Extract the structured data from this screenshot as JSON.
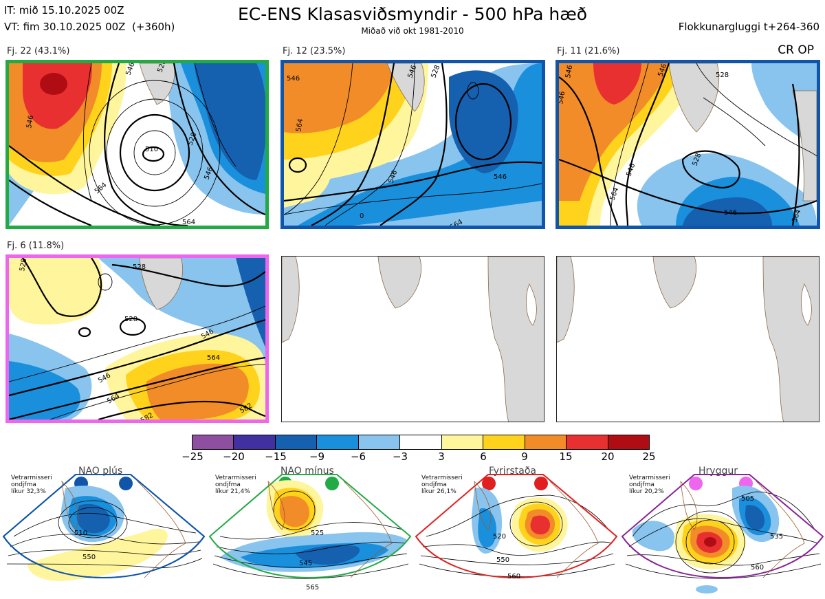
{
  "header": {
    "init_time": "IT: mið 15.10.2025 00Z",
    "valid_time": "VT: fim 30.10.2025 00Z  (+360h)",
    "title": "EC-ENS Klasasviðsmyndir - 500 hPa hæð",
    "subtitle": "Miðað við okt 1981-2010",
    "window": "Flokkunargluggi t+264-360"
  },
  "clusters": [
    {
      "label": "Fj. 22 (43.1%)",
      "border_color": "#22aa44",
      "contours": [
        "546",
        "528",
        "510",
        "546",
        "528",
        "564",
        "546",
        "564"
      ]
    },
    {
      "label": "Fj. 12 (23.5%)",
      "border_color": "#1155aa",
      "contours": [
        "546",
        "546",
        "528",
        "564",
        "546",
        "546",
        "0",
        "564"
      ]
    },
    {
      "label": "Fj. 11 (21.6%)",
      "border_color": "#1155aa",
      "badge": "CR OP",
      "contours": [
        "546",
        "546",
        "528",
        "546",
        "528",
        "546",
        "564",
        "546",
        "564"
      ]
    },
    {
      "label": "Fj. 6 (11.8%)",
      "border_color": "#ee66ee",
      "contours": [
        "528",
        "528",
        "528",
        "546",
        "564",
        "546",
        "564",
        "582",
        "582"
      ]
    }
  ],
  "colorbar": {
    "ticks": [
      "−25",
      "−20",
      "−15",
      "−9",
      "−6",
      "−3",
      "3",
      "6",
      "9",
      "15",
      "20",
      "25"
    ],
    "colors": [
      "#8e4fa0",
      "#4030a0",
      "#1660b0",
      "#1a90dd",
      "#88c4ee",
      "#ffffff",
      "#fff59d",
      "#ffd21c",
      "#f28c28",
      "#e83030",
      "#b00c14"
    ]
  },
  "regimes": [
    {
      "name": "NAO plús",
      "color": "#1155aa",
      "prob_lines": [
        "Vetrarmisseri",
        "ondjfma",
        "líkur 32,3%"
      ],
      "contours": [
        "510",
        "550"
      ]
    },
    {
      "name": "NAO mínus",
      "color": "#22aa44",
      "prob_lines": [
        "Vetrarmisseri",
        "ondjfma",
        "líkur 21,4%"
      ],
      "contours": [
        "525",
        "545",
        "565"
      ]
    },
    {
      "name": "Fyrirstaða",
      "color": "#e02020",
      "prob_lines": [
        "Vetrarmisseri",
        "ondjfma",
        "líkur 26,1%"
      ],
      "contours": [
        "520",
        "550",
        "560"
      ]
    },
    {
      "name": "Hryggur",
      "color": "#882299",
      "prob_lines": [
        "Vetrarmisseri",
        "ondjfma",
        "líkur 20,2%"
      ],
      "contours": [
        "505",
        "535",
        "560"
      ]
    }
  ]
}
